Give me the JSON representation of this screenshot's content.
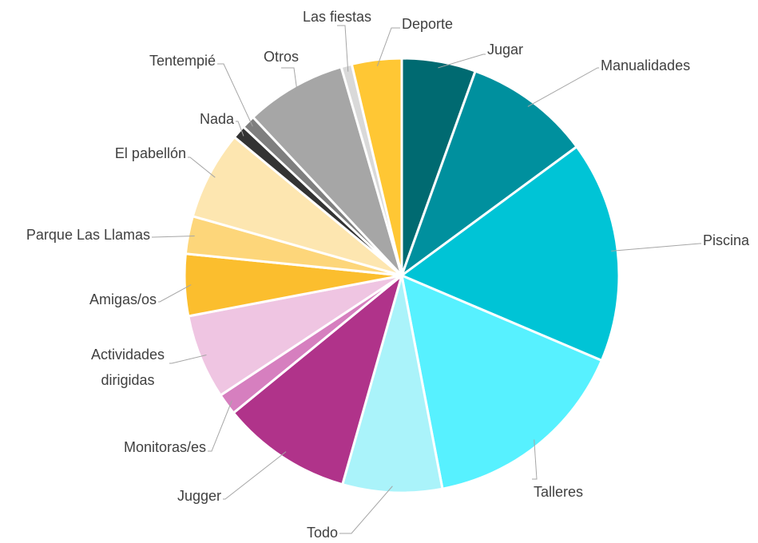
{
  "chart_data": {
    "type": "pie",
    "categories": [
      "Jugar",
      "Manualidades",
      "Piscina",
      "Talleres",
      "Todo",
      "Jugger",
      "Monitoras/es",
      "Actividades dirigidas",
      "Amigas/os",
      "Parque Las Llamas",
      "El pabellón",
      "Nada",
      "Tentempié",
      "Otros",
      "Las fiestas",
      "Deporte"
    ],
    "values": [
      5.5,
      9.4,
      16.5,
      15.6,
      7.4,
      9.7,
      1.6,
      6.3,
      4.6,
      2.8,
      6.6,
      1.0,
      1.0,
      7.5,
      0.8,
      3.7
    ],
    "colors": [
      "#006a71",
      "#00909e",
      "#00c4d6",
      "#57f1ff",
      "#aaf3fa",
      "#b0338a",
      "#d67fbf",
      "#efc5e2",
      "#fbbe2e",
      "#fdd67a",
      "#fde6b0",
      "#333333",
      "#7f7f7f",
      "#a6a6a6",
      "#d9d9d9",
      "#ffc734"
    ]
  }
}
